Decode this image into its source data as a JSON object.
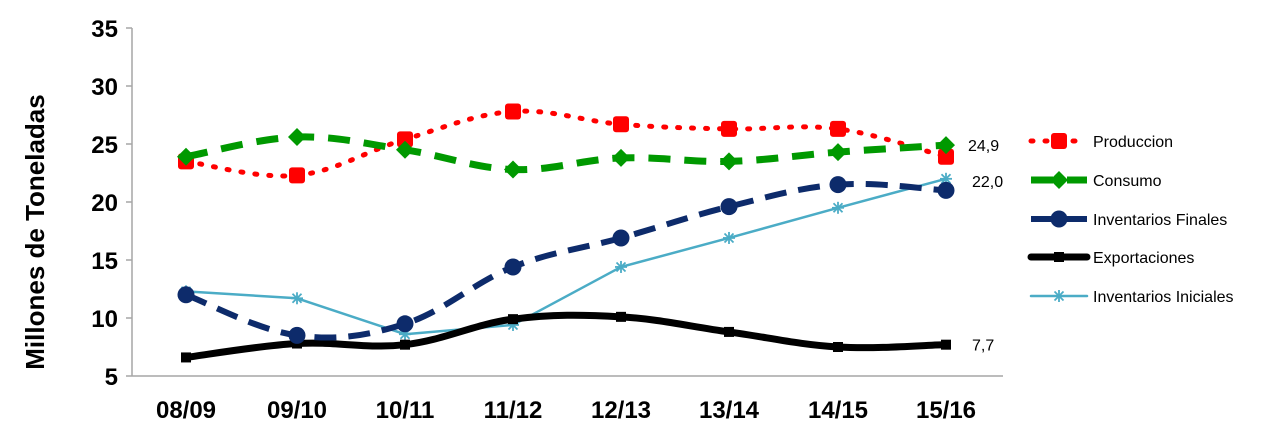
{
  "chart_data": {
    "type": "line",
    "title": "",
    "xlabel": "",
    "ylabel": "Millones de Toneladas",
    "ylim": [
      5,
      35
    ],
    "yticks": [
      5,
      10,
      15,
      20,
      25,
      30,
      35
    ],
    "grid": false,
    "legend_position": "right",
    "categories": [
      "08/09",
      "09/10",
      "10/11",
      "11/12",
      "12/13",
      "13/14",
      "14/15",
      "15/16"
    ],
    "series": [
      {
        "name": "Produccion",
        "values": [
          23.5,
          22.3,
          25.4,
          27.8,
          26.7,
          26.3,
          26.3,
          23.9
        ],
        "color": "#ff0000",
        "line_style": "dotted",
        "marker": "square"
      },
      {
        "name": "Consumo",
        "values": [
          23.9,
          25.6,
          24.5,
          22.8,
          23.8,
          23.5,
          24.3,
          24.9
        ],
        "color": "#009900",
        "line_style": "dashed",
        "marker": "diamond"
      },
      {
        "name": "Inventarios Finales",
        "values": [
          12.0,
          8.5,
          9.5,
          14.4,
          16.9,
          19.6,
          21.5,
          21.0
        ],
        "color": "#0d2b6b",
        "line_style": "dashed",
        "marker": "circle"
      },
      {
        "name": "Exportaciones",
        "values": [
          6.6,
          7.8,
          7.7,
          9.9,
          10.1,
          8.8,
          7.5,
          7.7
        ],
        "color": "#000000",
        "line_style": "solid",
        "marker": "small-square"
      },
      {
        "name": "Inventarios Iniciales",
        "values": [
          12.3,
          11.7,
          8.6,
          9.4,
          14.4,
          16.9,
          19.5,
          22.0
        ],
        "color": "#4bacc6",
        "line_style": "solid",
        "marker": "asterisk"
      }
    ],
    "data_labels": [
      {
        "series": "Consumo",
        "category": "15/16",
        "text": "24,9"
      },
      {
        "series": "Inventarios Iniciales",
        "category": "15/16",
        "text": "22,0"
      },
      {
        "series": "Exportaciones",
        "category": "15/16",
        "text": "7,7"
      }
    ]
  }
}
